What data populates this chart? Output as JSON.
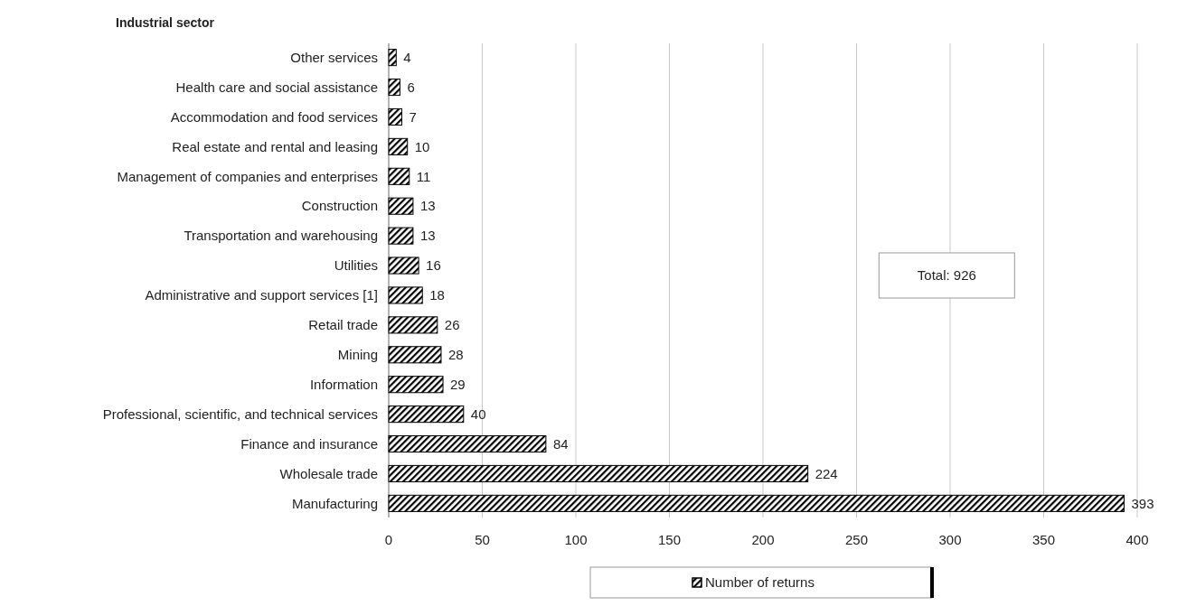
{
  "chart_data": {
    "type": "bar",
    "orientation": "horizontal",
    "ylabel": "Industrial sector",
    "categories": [
      "Other services",
      "Health care and social assistance",
      "Accommodation and food services",
      "Real estate and rental and leasing",
      "Management of companies and enterprises",
      "Construction",
      "Transportation and warehousing",
      "Utilities",
      "Administrative and support services [1]",
      "Retail trade",
      "Mining",
      "Information",
      "Professional, scientific, and technical services",
      "Finance and insurance",
      "Wholesale trade",
      "Manufacturing"
    ],
    "series": [
      {
        "name": "Number of returns",
        "color": "#000000",
        "values": [
          4,
          6,
          7,
          10,
          11,
          13,
          13,
          16,
          18,
          26,
          28,
          29,
          40,
          84,
          224,
          393
        ]
      }
    ],
    "xlim": [
      0,
      400
    ],
    "xticks": [
      0,
      50,
      100,
      150,
      200,
      250,
      300,
      350,
      400
    ],
    "grid": "x",
    "legend": "bottom",
    "data_labels": true,
    "annotations": [
      "Total: 926"
    ]
  }
}
